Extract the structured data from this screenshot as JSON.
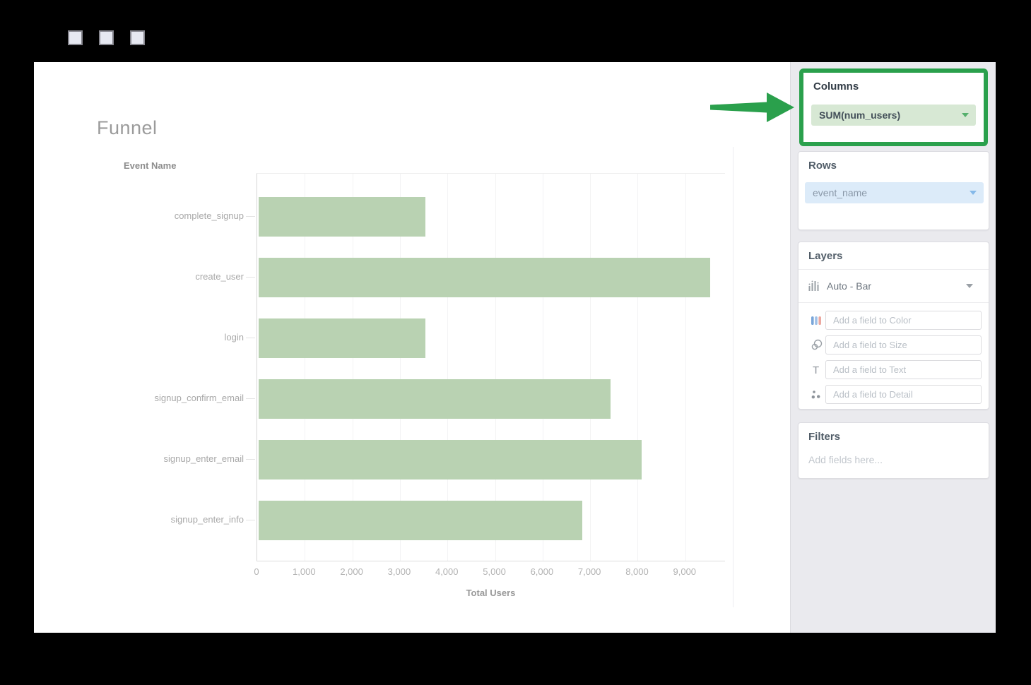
{
  "titlebar": {
    "buttons": [
      "window-button-1",
      "window-button-2",
      "window-button-3"
    ]
  },
  "chart": {
    "title": "Funnel",
    "y_axis_label": "Event Name",
    "x_axis_label": "Total Users"
  },
  "chart_data": {
    "type": "bar",
    "orientation": "horizontal",
    "title": "Funnel",
    "xlabel": "Total Users",
    "ylabel": "Event Name",
    "categories": [
      "complete_signup",
      "create_user",
      "login",
      "signup_confirm_email",
      "signup_enter_email",
      "signup_enter_info"
    ],
    "values": [
      3500,
      9500,
      3500,
      7400,
      8050,
      6800
    ],
    "xlim": [
      0,
      9850
    ],
    "xticks": [
      0,
      1000,
      2000,
      3000,
      4000,
      5000,
      6000,
      7000,
      8000,
      9000
    ],
    "xtick_labels": [
      "0",
      "1,000",
      "2,000",
      "3,000",
      "4,000",
      "5,000",
      "6,000",
      "7,000",
      "8,000",
      "9,000"
    ],
    "bar_color": "#b9d2b2",
    "grid": "vertical",
    "legend": "none"
  },
  "panel": {
    "columns": {
      "heading": "Columns",
      "field": "SUM(num_users)",
      "highlighted": true
    },
    "rows": {
      "heading": "Rows",
      "field": "event_name"
    },
    "layers": {
      "heading": "Layers",
      "layer_type": "Auto - Bar",
      "fields": [
        {
          "icon": "color-bars-icon",
          "placeholder": "Add a field to Color"
        },
        {
          "icon": "size-circles-icon",
          "placeholder": "Add a field to Size"
        },
        {
          "icon": "text-icon",
          "placeholder": "Add a field to Text"
        },
        {
          "icon": "detail-dots-icon",
          "placeholder": "Add a field to Detail"
        }
      ]
    },
    "filters": {
      "heading": "Filters",
      "placeholder": "Add fields here..."
    }
  },
  "annotation": {
    "type": "green-arrow-and-highlight-box",
    "points_at": "Columns"
  },
  "colors": {
    "highlight_green": "#2aa04c",
    "bar_green": "#b9d2b2",
    "columns_pill_bg": "#d7e8d4",
    "rows_pill_bg": "#dcebf9",
    "panel_bg": "#eaeaee",
    "frame": "#000000"
  }
}
